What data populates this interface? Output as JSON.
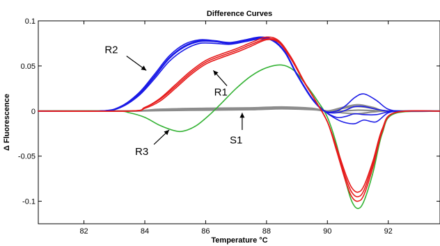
{
  "chart_data": {
    "type": "line",
    "title": "Difference Curves",
    "xlabel": "Temperature °C",
    "ylabel": "Δ Fluorescence",
    "xlim": [
      80.5,
      93.7
    ],
    "ylim": [
      -0.125,
      0.1
    ],
    "x_ticks": [
      82,
      84,
      86,
      88,
      90,
      92
    ],
    "y_ticks": [
      0.1,
      0.05,
      0,
      -0.05,
      -0.1
    ],
    "y_tick_labels": [
      "0.1",
      "0.05",
      "0",
      "-0.05",
      "-0.1"
    ],
    "grid": false,
    "legend": "none",
    "series": [
      {
        "color": "#1a1ae6",
        "x": [
          80.5,
          82.5,
          83.2,
          83.8,
          84.3,
          84.8,
          85.3,
          85.8,
          86.3,
          86.8,
          87.3,
          87.8,
          88.2,
          88.6,
          89.0,
          89.5,
          89.9,
          90.3,
          90.6,
          90.9,
          91.2,
          91.6,
          92.0,
          92.5,
          93.7
        ],
        "y": [
          0,
          0,
          0.004,
          0.017,
          0.035,
          0.055,
          0.068,
          0.075,
          0.075,
          0.074,
          0.077,
          0.08,
          0.078,
          0.065,
          0.04,
          0.014,
          0.0,
          -0.007,
          -0.006,
          -0.003,
          -0.004,
          -0.004,
          -0.001,
          0,
          0
        ]
      },
      {
        "color": "#1a1ae6",
        "x": [
          80.5,
          82.5,
          83.2,
          83.8,
          84.3,
          84.8,
          85.3,
          85.8,
          86.3,
          86.8,
          87.3,
          87.8,
          88.2,
          88.6,
          89.0,
          89.5,
          89.9,
          90.3,
          90.6,
          90.9,
          91.2,
          91.6,
          92.0,
          92.5,
          93.7
        ],
        "y": [
          0,
          0,
          0.004,
          0.018,
          0.037,
          0.058,
          0.071,
          0.077,
          0.077,
          0.075,
          0.078,
          0.081,
          0.079,
          0.066,
          0.041,
          0.014,
          0.0,
          -0.009,
          -0.013,
          -0.014,
          -0.01,
          -0.012,
          -0.002,
          0,
          0
        ]
      },
      {
        "color": "#1a1ae6",
        "x": [
          80.5,
          82.5,
          83.2,
          83.8,
          84.3,
          84.8,
          85.3,
          85.8,
          86.3,
          86.8,
          87.3,
          87.8,
          88.2,
          88.6,
          89.0,
          89.5,
          89.9,
          90.3,
          90.6,
          90.9,
          91.2,
          91.6,
          92.0,
          92.5,
          93.7
        ],
        "y": [
          0,
          0,
          0.005,
          0.02,
          0.04,
          0.061,
          0.074,
          0.079,
          0.078,
          0.076,
          0.079,
          0.082,
          0.079,
          0.066,
          0.04,
          0.013,
          0.0,
          0.0,
          0.006,
          0.015,
          0.019,
          0.012,
          0.002,
          0,
          0
        ]
      },
      {
        "color": "#1a1ae6",
        "x": [
          80.5,
          82.5,
          83.2,
          83.8,
          84.3,
          84.8,
          85.3,
          85.8,
          86.3,
          86.8,
          87.3,
          87.8,
          88.2,
          88.6,
          89.0,
          89.5,
          89.9,
          90.3,
          90.6,
          90.9,
          91.2,
          91.6,
          92.0,
          92.5,
          93.7
        ],
        "y": [
          0,
          0,
          0.004,
          0.019,
          0.038,
          0.059,
          0.072,
          0.078,
          0.077,
          0.075,
          0.078,
          0.081,
          0.078,
          0.066,
          0.041,
          0.014,
          0.0,
          -0.002,
          0.001,
          0.005,
          0.005,
          0.002,
          0.0,
          0,
          0
        ]
      },
      {
        "color": "#e61a1a",
        "x": [
          80.5,
          83.5,
          84.0,
          84.5,
          85.0,
          85.5,
          86.0,
          86.5,
          87.0,
          87.5,
          88.0,
          88.4,
          88.8,
          89.2,
          89.6,
          90.0,
          90.3,
          90.6,
          90.8,
          91.0,
          91.2,
          91.5,
          91.8,
          92.2,
          93.7
        ],
        "y": [
          0,
          0,
          0.003,
          0.011,
          0.025,
          0.04,
          0.052,
          0.059,
          0.065,
          0.072,
          0.079,
          0.076,
          0.058,
          0.034,
          0.012,
          -0.012,
          -0.04,
          -0.07,
          -0.085,
          -0.09,
          -0.083,
          -0.055,
          -0.02,
          -0.002,
          0
        ]
      },
      {
        "color": "#e61a1a",
        "x": [
          80.5,
          83.5,
          84.0,
          84.5,
          85.0,
          85.5,
          86.0,
          86.5,
          87.0,
          87.5,
          88.0,
          88.4,
          88.8,
          89.2,
          89.6,
          90.0,
          90.3,
          90.6,
          90.8,
          91.0,
          91.2,
          91.5,
          91.8,
          92.2,
          93.7
        ],
        "y": [
          0,
          0,
          0.004,
          0.013,
          0.027,
          0.042,
          0.054,
          0.061,
          0.067,
          0.074,
          0.08,
          0.077,
          0.059,
          0.034,
          0.012,
          -0.012,
          -0.042,
          -0.074,
          -0.09,
          -0.095,
          -0.088,
          -0.058,
          -0.021,
          -0.002,
          0
        ]
      },
      {
        "color": "#e61a1a",
        "x": [
          80.5,
          83.5,
          84.0,
          84.5,
          85.0,
          85.5,
          86.0,
          86.5,
          87.0,
          87.5,
          88.0,
          88.4,
          88.8,
          89.2,
          89.6,
          90.0,
          90.3,
          90.6,
          90.8,
          91.0,
          91.2,
          91.5,
          91.8,
          92.2,
          93.7
        ],
        "y": [
          0,
          0,
          0.004,
          0.014,
          0.029,
          0.044,
          0.056,
          0.063,
          0.069,
          0.076,
          0.082,
          0.078,
          0.06,
          0.035,
          0.012,
          -0.012,
          -0.044,
          -0.078,
          -0.095,
          -0.1,
          -0.093,
          -0.062,
          -0.023,
          -0.002,
          0
        ]
      },
      {
        "color": "#33b233",
        "x": [
          80.5,
          83.0,
          83.5,
          84.0,
          84.5,
          85.0,
          85.3,
          85.7,
          86.1,
          86.5,
          87.0,
          87.5,
          88.0,
          88.5,
          88.9,
          89.3,
          89.7,
          90.0,
          90.3,
          90.6,
          90.8,
          91.0,
          91.2,
          91.5,
          91.8,
          92.2,
          93.7
        ],
        "y": [
          0,
          0,
          -0.002,
          -0.007,
          -0.016,
          -0.022,
          -0.022,
          -0.016,
          -0.005,
          0.008,
          0.025,
          0.039,
          0.048,
          0.051,
          0.045,
          0.029,
          0.01,
          -0.007,
          -0.037,
          -0.078,
          -0.1,
          -0.108,
          -0.1,
          -0.068,
          -0.025,
          -0.003,
          0
        ]
      },
      {
        "color": "#8c8c8c",
        "x": [
          80.5,
          83.5,
          84.5,
          86.0,
          87.5,
          88.5,
          89.5,
          90.0,
          90.5,
          91.0,
          91.5,
          92.0,
          93.7
        ],
        "y": [
          0,
          0,
          0.0015,
          0.002,
          0.002,
          0.003,
          0.002,
          0.0,
          0.004,
          0.007,
          0.004,
          0.0,
          0
        ]
      },
      {
        "color": "#8c8c8c",
        "x": [
          80.5,
          83.5,
          84.5,
          86.0,
          87.5,
          88.5,
          89.5,
          90.0,
          90.5,
          91.0,
          91.5,
          92.0,
          93.7
        ],
        "y": [
          0,
          0,
          0.002,
          0.003,
          0.0035,
          0.0045,
          0.003,
          0.0,
          0.003,
          0.005,
          0.003,
          0.0,
          0
        ]
      },
      {
        "color": "#8c8c8c",
        "x": [
          80.5,
          83.5,
          84.5,
          86.0,
          87.5,
          88.5,
          89.5,
          90.0,
          90.5,
          91.0,
          91.5,
          92.0,
          93.7
        ],
        "y": [
          0,
          0,
          0.0005,
          0.001,
          0.0015,
          0.0025,
          0.0015,
          0.0,
          0.0,
          0.001,
          0.0005,
          0.0,
          0
        ]
      },
      {
        "color": "#8c8c8c",
        "x": [
          80.5,
          83.5,
          84.5,
          86.0,
          87.5,
          88.5,
          89.5,
          90.0,
          90.5,
          91.0,
          91.5,
          92.0,
          93.7
        ],
        "y": [
          0,
          0,
          0.001,
          0.0015,
          0.0025,
          0.0035,
          0.002,
          0.0,
          -0.002,
          -0.003,
          -0.001,
          0.0,
          0
        ]
      }
    ],
    "annotations": [
      {
        "text": "R2",
        "text_x": 82.9,
        "text_y": 0.068,
        "arrow_from_x": 83.4,
        "arrow_from_y": 0.061,
        "arrow_to_x": 84.05,
        "arrow_to_y": 0.045
      },
      {
        "text": "R1",
        "text_x": 86.5,
        "text_y": 0.021,
        "arrow_from_x": 86.7,
        "arrow_from_y": 0.028,
        "arrow_to_x": 86.25,
        "arrow_to_y": 0.045
      },
      {
        "text": "R3",
        "text_x": 83.9,
        "text_y": -0.045,
        "arrow_from_x": 84.3,
        "arrow_from_y": -0.037,
        "arrow_to_x": 84.8,
        "arrow_to_y": -0.021
      },
      {
        "text": "S1",
        "text_x": 87.0,
        "text_y": -0.032,
        "arrow_from_x": 87.2,
        "arrow_from_y": -0.021,
        "arrow_to_x": 87.2,
        "arrow_to_y": -0.002
      }
    ]
  }
}
